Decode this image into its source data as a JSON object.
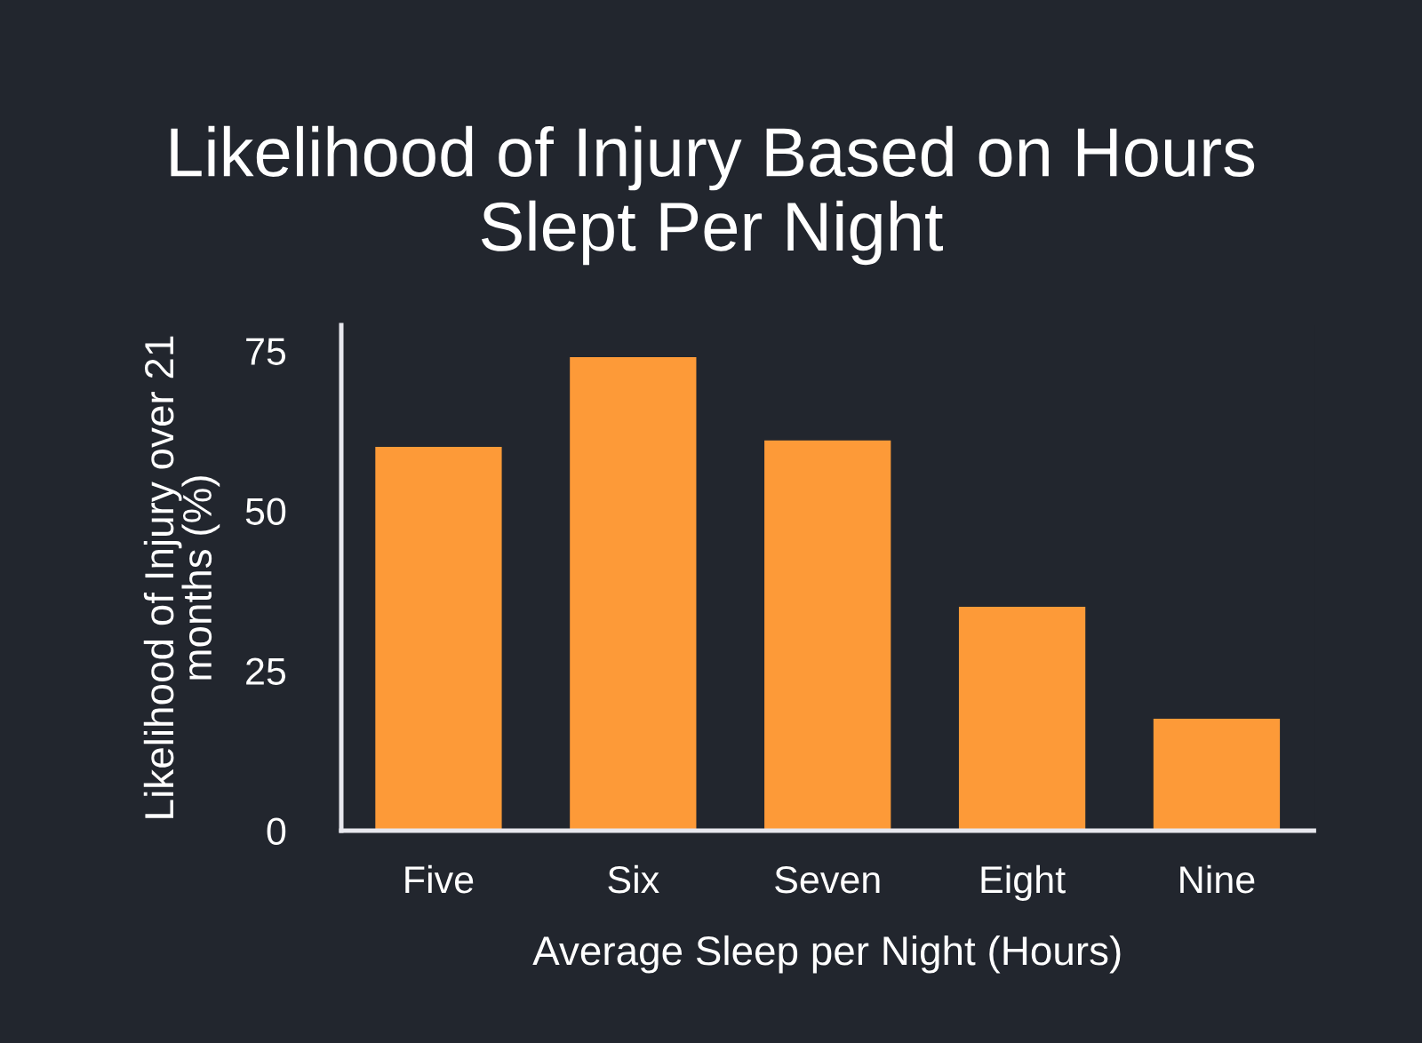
{
  "chart_data": {
    "type": "bar",
    "title": "Likelihood of Injury Based on Hours\nSlept Per Night",
    "xlabel": "Average Sleep per Night (Hours)",
    "ylabel": "Likelihood of Injury over 21\nmonths (%)",
    "categories": [
      "Five",
      "Six",
      "Seven",
      "Eight",
      "Nine"
    ],
    "values": [
      60,
      74,
      61,
      35,
      17.5
    ],
    "color": "#fd9a38",
    "ylim": [
      0,
      79
    ],
    "yticks": [
      0,
      25,
      50,
      75
    ]
  }
}
